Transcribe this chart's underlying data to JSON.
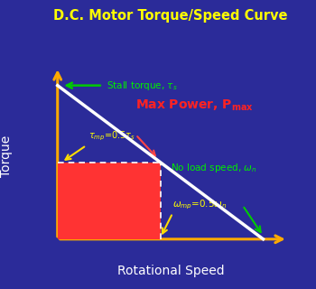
{
  "title": "D.C. Motor Torque/Speed Curve",
  "title_color": "#FFFF00",
  "bg_color": "#2B2B99",
  "xlabel": "Rotational Speed",
  "ylabel": "Torque",
  "xlabel_color": "#FFFFFF",
  "ylabel_color": "#FFFFFF",
  "line_color": "#FFFFFF",
  "axis_color": "#FFAA00",
  "rect_color": "#FF3333",
  "stall_label_color": "#00EE00",
  "tau_mp_color": "#FFFF00",
  "no_load_color": "#00EE00",
  "omega_mp_color": "#FFFF00",
  "max_power_color": "#FF2222",
  "arrow_green": "#00CC00",
  "arrow_yellow": "#FFDD00",
  "arrow_red": "#FF4444"
}
